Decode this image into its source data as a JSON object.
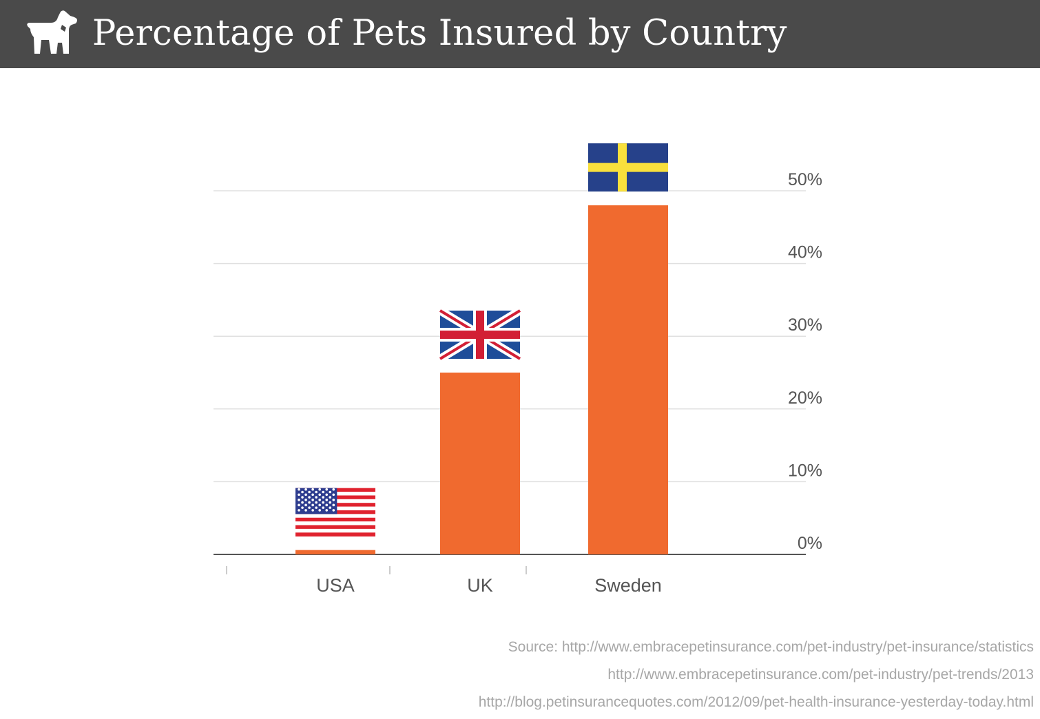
{
  "header": {
    "title": "Percentage of Pets Insured by Country",
    "icon": "dog-icon",
    "background": "#4a4a4a"
  },
  "chart_data": {
    "type": "bar",
    "title": "Percentage of Pets Insured by Country",
    "categories": [
      "USA",
      "UK",
      "Sweden"
    ],
    "values": [
      0.6,
      25,
      48
    ],
    "ylim": [
      0,
      50
    ],
    "yticks": [
      0,
      10,
      20,
      30,
      40,
      50
    ],
    "ytick_labels": [
      "0%",
      "10%",
      "20%",
      "30%",
      "40%",
      "50%"
    ],
    "ylabel_position": "right",
    "grid": true,
    "xlabel": "",
    "ylabel": "",
    "bar_color": "#f06a2f",
    "flags": [
      "us-flag",
      "uk-flag",
      "sweden-flag"
    ]
  },
  "sources": [
    "Source: http://www.embracepetinsurance.com/pet-industry/pet-insurance/statistics",
    "http://www.embracepetinsurance.com/pet-industry/pet-trends/2013",
    "http://blog.petinsurancequotes.com/2012/09/pet-health-insurance-yesterday-today.html"
  ]
}
